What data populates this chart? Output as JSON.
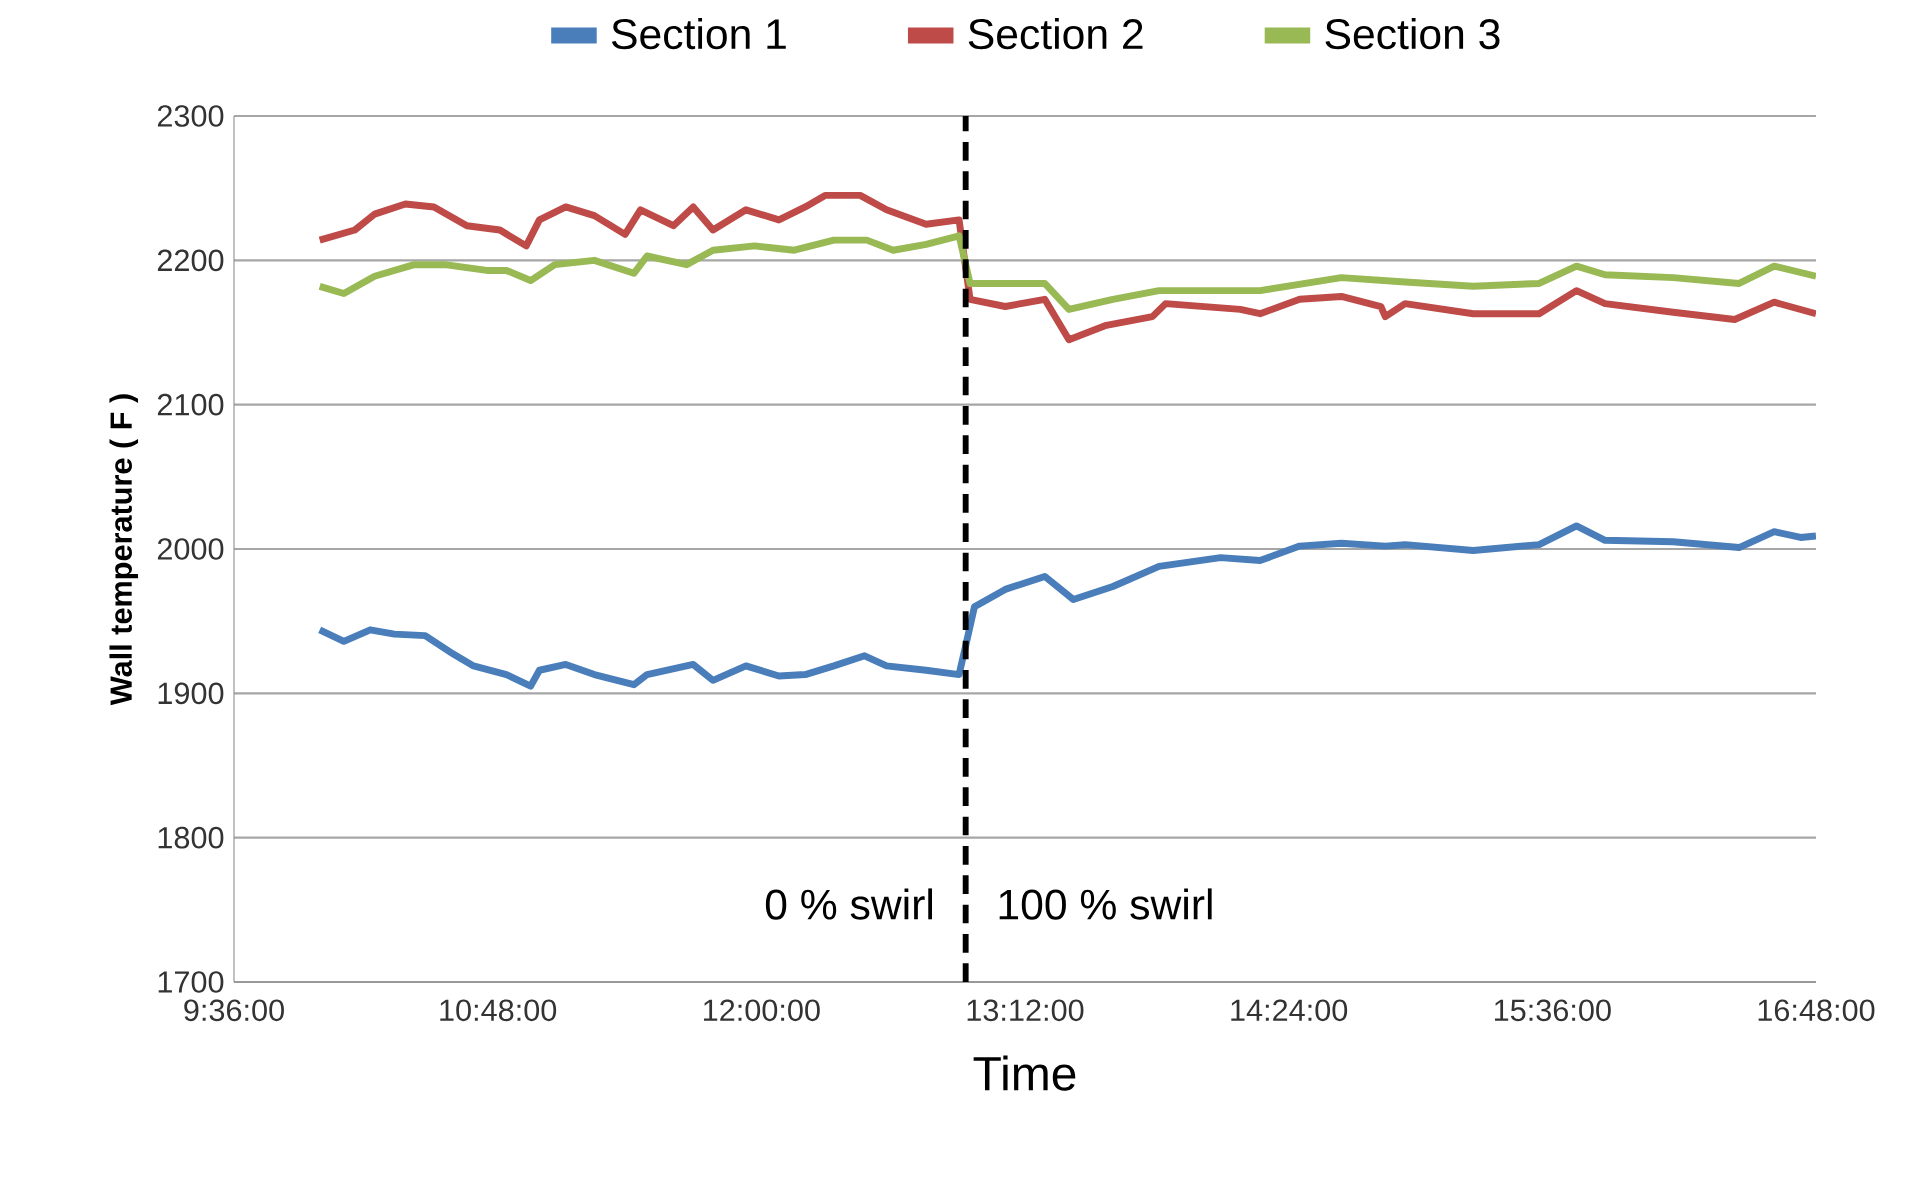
{
  "chart_data": {
    "type": "line",
    "xlabel": "Time",
    "ylabel": "Wall temperature ( F )",
    "xlim": [
      9.6,
      16.8
    ],
    "xticks": [
      {
        "value": 9.6,
        "label": "9:36:00"
      },
      {
        "value": 10.8,
        "label": "10:48:00"
      },
      {
        "value": 12.0,
        "label": "12:00:00"
      },
      {
        "value": 13.2,
        "label": "13:12:00"
      },
      {
        "value": 14.4,
        "label": "14:24:00"
      },
      {
        "value": 15.6,
        "label": "15:36:00"
      },
      {
        "value": 16.8,
        "label": "16:48:00"
      }
    ],
    "ylim": [
      1700,
      2300
    ],
    "yticks": [
      1700,
      1800,
      1900,
      2000,
      2100,
      2200,
      2300
    ],
    "grid": "y",
    "legend": "top",
    "ref_lines": [
      {
        "axis": "x",
        "value": 12.93,
        "color": "#000000",
        "line_style": "dashed"
      }
    ],
    "annotations": [
      "0 % swirl",
      "100 % swirl"
    ],
    "series": [
      {
        "name": "Section 1",
        "color": "#4a7ebb",
        "x": [
          9.99,
          10.1,
          10.22,
          10.33,
          10.47,
          10.6,
          10.69,
          10.84,
          10.95,
          10.99,
          11.11,
          11.24,
          11.42,
          11.48,
          11.69,
          11.78,
          11.93,
          12.08,
          12.2,
          12.33,
          12.47,
          12.57,
          12.75,
          12.9,
          12.93,
          12.97,
          13.11,
          13.29,
          13.42,
          13.6,
          13.81,
          14.09,
          14.27,
          14.45,
          14.64,
          14.84,
          14.93,
          15.24,
          15.54,
          15.71,
          15.84,
          16.15,
          16.45,
          16.61,
          16.73,
          16.8
        ],
        "values": [
          1944,
          1936,
          1944,
          1941,
          1940,
          1927,
          1919,
          1913,
          1905,
          1916,
          1920,
          1913,
          1906,
          1913,
          1920,
          1909,
          1919,
          1912,
          1913,
          1919,
          1926,
          1919,
          1916,
          1913,
          1933,
          1960,
          1972,
          1981,
          1965,
          1974,
          1988,
          1994,
          1992,
          2002,
          2004,
          2002,
          2003,
          1999,
          2003,
          2016,
          2006,
          2005,
          2001,
          2012,
          2008,
          2009
        ]
      },
      {
        "name": "Section 2",
        "color": "#be4b48",
        "x": [
          9.99,
          10.15,
          10.24,
          10.38,
          10.51,
          10.66,
          10.81,
          10.93,
          10.99,
          11.11,
          11.24,
          11.38,
          11.45,
          11.6,
          11.69,
          11.78,
          11.93,
          12.08,
          12.2,
          12.29,
          12.45,
          12.57,
          12.75,
          12.9,
          12.95,
          13.11,
          13.29,
          13.4,
          13.57,
          13.78,
          13.84,
          14.18,
          14.27,
          14.45,
          14.64,
          14.82,
          14.84,
          14.93,
          15.24,
          15.54,
          15.71,
          15.84,
          16.15,
          16.43,
          16.61,
          16.8
        ],
        "values": [
          2214,
          2221,
          2232,
          2239,
          2237,
          2224,
          2221,
          2210,
          2228,
          2237,
          2231,
          2218,
          2235,
          2224,
          2237,
          2221,
          2235,
          2228,
          2237,
          2245,
          2245,
          2235,
          2225,
          2228,
          2173,
          2168,
          2173,
          2145,
          2155,
          2161,
          2170,
          2166,
          2163,
          2173,
          2175,
          2168,
          2161,
          2170,
          2163,
          2163,
          2179,
          2170,
          2164,
          2159,
          2171,
          2163
        ]
      },
      {
        "name": "Section 3",
        "color": "#98b954",
        "x": [
          9.99,
          10.1,
          10.24,
          10.42,
          10.56,
          10.75,
          10.84,
          10.95,
          11.06,
          11.24,
          11.42,
          11.48,
          11.66,
          11.78,
          11.97,
          12.15,
          12.33,
          12.48,
          12.6,
          12.75,
          12.9,
          12.95,
          13.11,
          13.29,
          13.4,
          13.6,
          13.81,
          14.27,
          14.64,
          14.93,
          15.24,
          15.54,
          15.71,
          15.84,
          16.15,
          16.45,
          16.61,
          16.8
        ],
        "values": [
          2182,
          2177,
          2189,
          2197,
          2197,
          2193,
          2193,
          2186,
          2197,
          2200,
          2191,
          2203,
          2197,
          2207,
          2210,
          2207,
          2214,
          2214,
          2207,
          2211,
          2217,
          2184,
          2184,
          2184,
          2166,
          2173,
          2179,
          2179,
          2188,
          2185,
          2182,
          2184,
          2196,
          2190,
          2188,
          2184,
          2196,
          2189
        ]
      }
    ]
  }
}
